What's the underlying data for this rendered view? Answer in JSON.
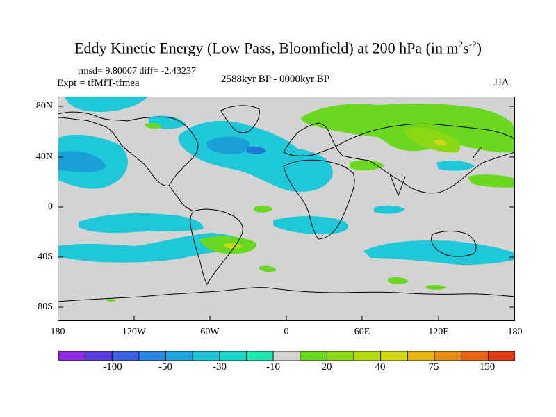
{
  "title": {
    "main": "Eddy Kinetic Energy (Low Pass, Bloomfield) at 200 hPa (in m",
    "sup1": "2",
    "mid": "s",
    "sup2": "-2",
    "end": ")"
  },
  "stats": "rmsd= 9.80007 diff= -2.43237",
  "experiment": "Expt = tfMfT-tfmea",
  "period": "2588kyr BP - 0000kyr BP",
  "season": "JJA",
  "lat_labels": [
    "80N",
    "40N",
    "0",
    "40S",
    "80S"
  ],
  "lon_labels": [
    "180",
    "120W",
    "60W",
    "0",
    "60E",
    "120E",
    "180"
  ],
  "colors": {
    "background": "#d3d3d3",
    "blue_light": "#21c8e0",
    "blue_mid": "#1a9fd6",
    "blue_dark": "#1f78d4",
    "teal": "#17e6c0",
    "green": "#74d82a",
    "lime": "#a8d81c",
    "yellow_green": "#cfd81a"
  },
  "colorbar": {
    "colors": [
      "#8a2be2",
      "#5a3ce0",
      "#3c5fe0",
      "#2a86e0",
      "#1ea4dc",
      "#1ec2d8",
      "#17d8c8",
      "#1ee6b0",
      "#d3d3d3",
      "#6ad81e",
      "#8cd814",
      "#b4d814",
      "#d2d814",
      "#e6b414",
      "#e68c14",
      "#e66414",
      "#e03c14"
    ],
    "labels": [
      "-100",
      "-50",
      "-30",
      "-10",
      "20",
      "40",
      "75",
      "150"
    ]
  }
}
